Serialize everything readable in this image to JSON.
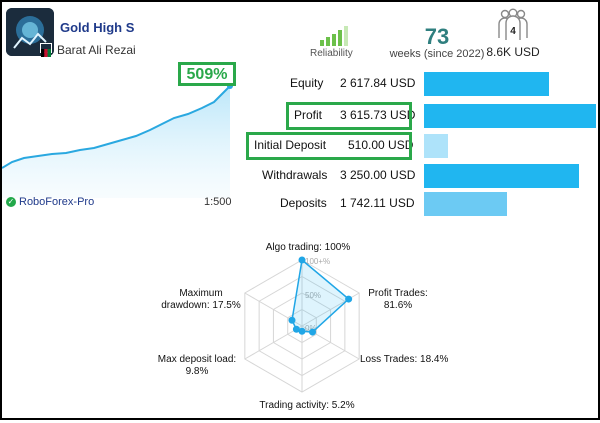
{
  "header": {
    "title": "Gold High S",
    "author": "Barat Ali Rezai",
    "reliability_label": "Reliability",
    "weeks_value": "73",
    "weeks_label": "weeks (since 2022)",
    "subscribers_count": "4",
    "subscribers_funds": "8.6K USD"
  },
  "growth": {
    "value": "509%",
    "broker": "RoboForex-Pro",
    "leverage": "1:500"
  },
  "stats": [
    {
      "label": "Equity",
      "value": "2 617.84 USD",
      "amount": 2617.84
    },
    {
      "label": "Profit",
      "value": "3 615.73 USD",
      "amount": 3615.73
    },
    {
      "label": "Initial Deposit",
      "value": "510.00 USD",
      "amount": 510.0
    },
    {
      "label": "Withdrawals",
      "value": "3 250.00 USD",
      "amount": 3250.0
    },
    {
      "label": "Deposits",
      "value": "1 742.11 USD",
      "amount": 1742.11
    }
  ],
  "radar": {
    "labels": {
      "algo": "Algo trading: 100%",
      "profit_1": "Profit Trades:",
      "profit_2": "81.6%",
      "loss": "Loss Trades: 18.4%",
      "activity": "Trading activity: 5.2%",
      "load_1": "Max deposit load:",
      "load_2": "9.8%",
      "dd_1": "Maximum",
      "dd_2": "drawdown: 17.5%"
    },
    "ticks": [
      "100+%",
      "50%",
      "0%"
    ],
    "values": [
      100,
      81.6,
      18.4,
      5.2,
      9.8,
      17.5
    ]
  },
  "colors": {
    "accent_blue": "#20b6f0",
    "highlight_green": "#2aa84a",
    "reliability_green": "#6cc04a"
  }
}
